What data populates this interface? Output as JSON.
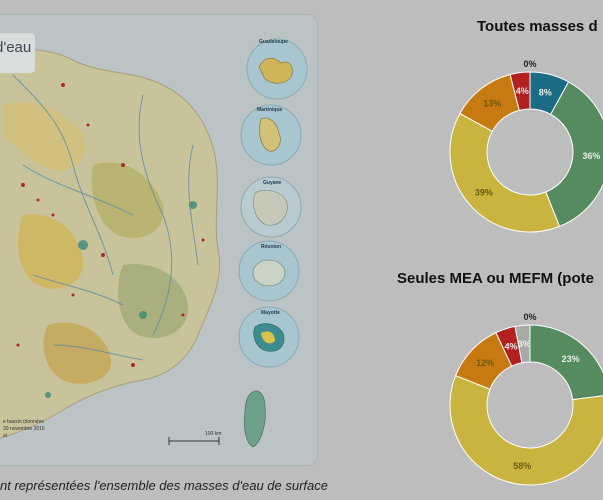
{
  "map": {
    "title_fragment": "d'eau",
    "insets": [
      "Guadeloupe",
      "Martinique",
      "Guyane",
      "Réunion",
      "Mayotte"
    ],
    "source_line1": "e bassin (données",
    "source_line2": "30 novembre 2016",
    "source_line3": "al",
    "scale_label": "100 km"
  },
  "caption": "nt représentées l'ensemble des masses d'eau de surface",
  "chart_data": [
    {
      "type": "pie",
      "title": "Toutes masses d",
      "slices": [
        {
          "label": "8%",
          "value": 8,
          "color": "#1c6b85"
        },
        {
          "label": "36%",
          "value": 36,
          "color": "#558b5e"
        },
        {
          "label": "39%",
          "value": 39,
          "color": "#c8b43e"
        },
        {
          "label": "13%",
          "value": 13,
          "color": "#c77a12"
        },
        {
          "label": "4%",
          "value": 4,
          "color": "#b32020"
        },
        {
          "label": "0%",
          "value": 0,
          "color": "#999999"
        }
      ]
    },
    {
      "type": "pie",
      "title": "Seules MEA ou MEFM (pote",
      "slices": [
        {
          "label": "23%",
          "value": 23,
          "color": "#558b5e"
        },
        {
          "label": "58%",
          "value": 58,
          "color": "#c8b43e"
        },
        {
          "label": "12%",
          "value": 12,
          "color": "#c77a12"
        },
        {
          "label": "4%",
          "value": 4,
          "color": "#b32020"
        },
        {
          "label": "3%",
          "value": 3,
          "color": "#a9a9a9"
        },
        {
          "label": "0%",
          "value": 0,
          "color": "#999999"
        }
      ]
    }
  ]
}
